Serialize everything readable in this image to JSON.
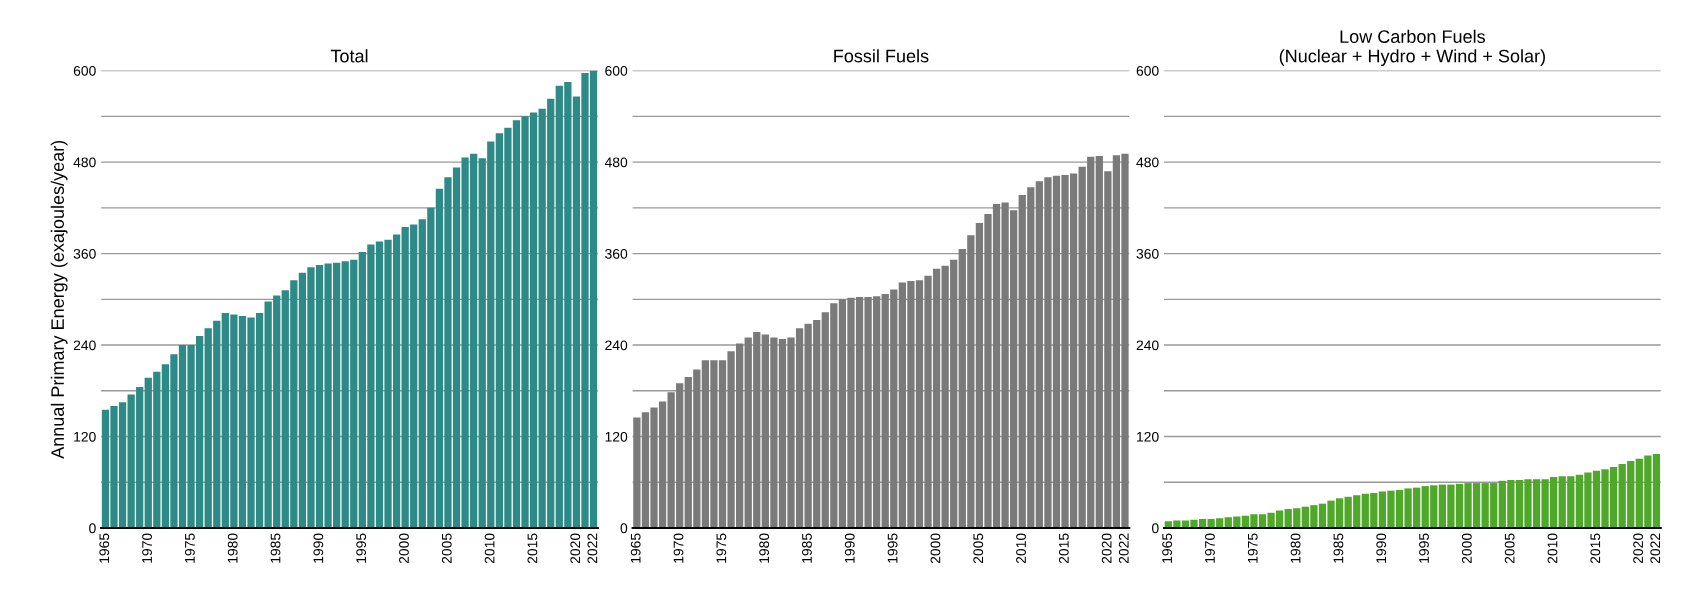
{
  "chart_data": [
    {
      "type": "bar",
      "title": "Total",
      "ylabel": "Annual Primary Energy (exajoules/year)",
      "categories": [
        "1965",
        null,
        null,
        null,
        null,
        "1970",
        null,
        null,
        null,
        null,
        "1975",
        null,
        null,
        null,
        null,
        "1980",
        null,
        null,
        null,
        null,
        "1985",
        null,
        null,
        null,
        null,
        "1990",
        null,
        null,
        null,
        null,
        "1995",
        null,
        null,
        null,
        null,
        "2000",
        null,
        null,
        null,
        null,
        "2005",
        null,
        null,
        null,
        null,
        "2010",
        null,
        null,
        null,
        null,
        "2015",
        null,
        null,
        null,
        null,
        "2020",
        null,
        "2022"
      ],
      "values": [
        155,
        160,
        165,
        175,
        185,
        197,
        205,
        215,
        228,
        240,
        240,
        252,
        262,
        272,
        282,
        280,
        278,
        276,
        282,
        297,
        305,
        312,
        325,
        335,
        342,
        345,
        347,
        348,
        350,
        352,
        362,
        372,
        376,
        378,
        385,
        395,
        398,
        405,
        420,
        445,
        460,
        473,
        486,
        491,
        485,
        507,
        518,
        525,
        535,
        540,
        545,
        550,
        563,
        580,
        585,
        566,
        597,
        600
      ],
      "color": "#2e8a87",
      "ylim": [
        0,
        600
      ],
      "yticks": [
        0,
        {
          "value": 60,
          "label": null
        },
        120,
        {
          "value": 180,
          "label": null
        },
        240,
        {
          "value": 300,
          "label": null
        },
        360,
        {
          "value": 420,
          "label": null
        },
        480,
        {
          "value": 540,
          "label": null
        },
        600
      ],
      "grid": "y"
    },
    {
      "type": "bar",
      "title": "Fossil Fuels",
      "categories": [
        "1965",
        null,
        null,
        null,
        null,
        "1970",
        null,
        null,
        null,
        null,
        "1975",
        null,
        null,
        null,
        null,
        "1980",
        null,
        null,
        null,
        null,
        "1985",
        null,
        null,
        null,
        null,
        "1990",
        null,
        null,
        null,
        null,
        "1995",
        null,
        null,
        null,
        null,
        "2000",
        null,
        null,
        null,
        null,
        "2005",
        null,
        null,
        null,
        null,
        "2010",
        null,
        null,
        null,
        null,
        "2015",
        null,
        null,
        null,
        null,
        "2020",
        null,
        "2022"
      ],
      "values": [
        145,
        152,
        158,
        166,
        178,
        190,
        198,
        208,
        220,
        220,
        220,
        232,
        242,
        250,
        257,
        254,
        250,
        248,
        250,
        262,
        268,
        273,
        283,
        295,
        300,
        302,
        303,
        303,
        304,
        307,
        313,
        322,
        324,
        325,
        331,
        340,
        344,
        352,
        366,
        384,
        400,
        412,
        425,
        427,
        417,
        437,
        447,
        455,
        460,
        462,
        463,
        465,
        474,
        487,
        488,
        468,
        489,
        491
      ],
      "color": "#7a7a7a",
      "ylim": [
        0,
        600
      ],
      "yticks": [
        0,
        {
          "value": 60,
          "label": null
        },
        120,
        {
          "value": 180,
          "label": null
        },
        240,
        {
          "value": 300,
          "label": null
        },
        360,
        {
          "value": 420,
          "label": null
        },
        480,
        {
          "value": 540,
          "label": null
        },
        600
      ],
      "grid": "y"
    },
    {
      "type": "bar",
      "title": "Low Carbon Fuels\n(Nuclear + Hydro + Wind + Solar)",
      "categories": [
        "1965",
        null,
        null,
        null,
        null,
        "1970",
        null,
        null,
        null,
        null,
        "1975",
        null,
        null,
        null,
        null,
        "1980",
        null,
        null,
        null,
        null,
        "1985",
        null,
        null,
        null,
        null,
        "1990",
        null,
        null,
        null,
        null,
        "1995",
        null,
        null,
        null,
        null,
        "2000",
        null,
        null,
        null,
        null,
        "2005",
        null,
        null,
        null,
        null,
        "2010",
        null,
        null,
        null,
        null,
        "2015",
        null,
        null,
        null,
        null,
        "2020",
        null,
        "2022"
      ],
      "values": [
        9,
        10,
        10,
        11,
        12,
        12,
        13,
        14,
        15,
        16,
        18,
        18,
        20,
        23,
        25,
        26,
        28,
        30,
        32,
        36,
        39,
        41,
        43,
        45,
        46,
        48,
        49,
        50,
        52,
        53,
        55,
        56,
        57,
        57,
        58,
        59,
        59,
        59,
        59,
        62,
        63,
        63,
        64,
        64,
        64,
        67,
        68,
        68,
        70,
        73,
        75,
        77,
        80,
        84,
        88,
        91,
        95,
        97
      ],
      "color": "#4fa82a",
      "ylim": [
        0,
        600
      ],
      "yticks": [
        0,
        {
          "value": 60,
          "label": null
        },
        120,
        {
          "value": 180,
          "label": null
        },
        240,
        {
          "value": 300,
          "label": null
        },
        360,
        {
          "value": 420,
          "label": null
        },
        480,
        {
          "value": 540,
          "label": null
        },
        600
      ],
      "grid": "y"
    }
  ]
}
